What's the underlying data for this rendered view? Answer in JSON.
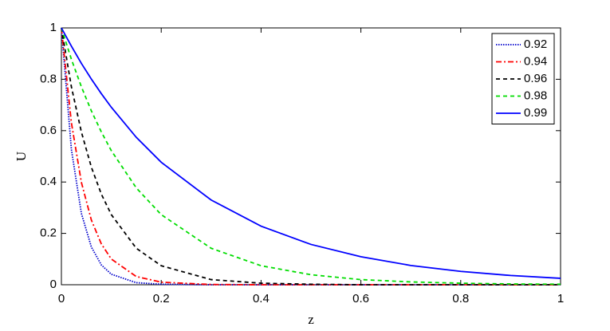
{
  "chart_data": {
    "type": "line",
    "x_label": "z",
    "y_label": "U",
    "x": [
      0,
      0.02,
      0.04,
      0.06,
      0.08,
      0.1,
      0.15,
      0.2,
      0.3,
      0.4,
      0.5,
      0.6,
      0.7,
      0.8,
      0.9,
      1
    ],
    "series": [
      {
        "name": "0.92",
        "color": "#0000cc",
        "style": "dotted",
        "values": [
          1,
          0.527,
          0.278,
          0.147,
          0.077,
          0.041,
          0.008,
          0.002,
          0,
          0,
          0,
          0,
          0,
          0,
          0,
          0
        ]
      },
      {
        "name": "0.94",
        "color": "#ff0000",
        "style": "dashdot",
        "values": [
          1,
          0.631,
          0.399,
          0.252,
          0.159,
          0.1,
          0.032,
          0.01,
          0.001,
          0,
          0,
          0,
          0,
          0,
          0,
          0
        ]
      },
      {
        "name": "0.96",
        "color": "#000000",
        "style": "dashed",
        "values": [
          1,
          0.771,
          0.595,
          0.458,
          0.353,
          0.273,
          0.142,
          0.074,
          0.02,
          0.006,
          0.002,
          0,
          0,
          0,
          0,
          0
        ]
      },
      {
        "name": "0.98",
        "color": "#00dd00",
        "style": "dashed",
        "values": [
          1,
          0.878,
          0.771,
          0.677,
          0.595,
          0.522,
          0.377,
          0.273,
          0.142,
          0.074,
          0.039,
          0.02,
          0.011,
          0.006,
          0.003,
          0.002
        ]
      },
      {
        "name": "0.99",
        "color": "#0000ff",
        "style": "solid",
        "values": [
          1,
          0.929,
          0.862,
          0.801,
          0.744,
          0.691,
          0.574,
          0.477,
          0.33,
          0.228,
          0.157,
          0.109,
          0.075,
          0.052,
          0.036,
          0.025
        ]
      }
    ],
    "xlim": [
      0,
      1
    ],
    "xticks": [
      0,
      0.2,
      0.4,
      0.6,
      0.8,
      1
    ],
    "ylim": [
      0,
      1
    ],
    "yticks": [
      0,
      0.2,
      0.4,
      0.6,
      0.8,
      1
    ],
    "grid": false,
    "legend": "upper-right"
  }
}
